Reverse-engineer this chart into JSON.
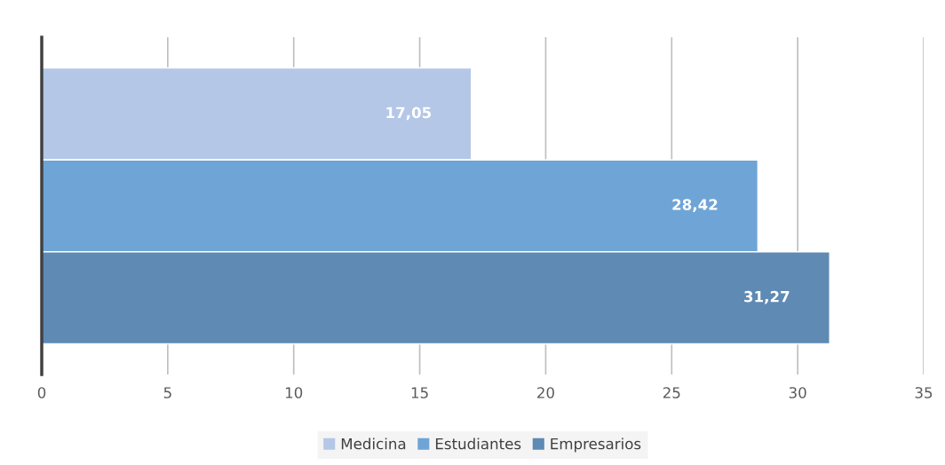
{
  "chart_data": {
    "type": "bar",
    "orientation": "horizontal",
    "categories": [
      null
    ],
    "series": [
      {
        "name": "Medicina",
        "color": "#b4c7e7",
        "values": [
          17.05
        ],
        "value_labels": [
          "17,05"
        ]
      },
      {
        "name": "Estudiantes",
        "color": "#6fa4d6",
        "values": [
          28.42
        ],
        "value_labels": [
          "28,42"
        ]
      },
      {
        "name": "Empresarios",
        "color": "#5e8ab4",
        "values": [
          31.27
        ],
        "value_labels": [
          "31,27"
        ]
      }
    ],
    "xlim": [
      0,
      35
    ],
    "xticks": [
      0,
      5,
      10,
      15,
      20,
      25,
      30,
      35
    ],
    "grid": "x",
    "legend": "bottom",
    "tick_labels": "x"
  }
}
